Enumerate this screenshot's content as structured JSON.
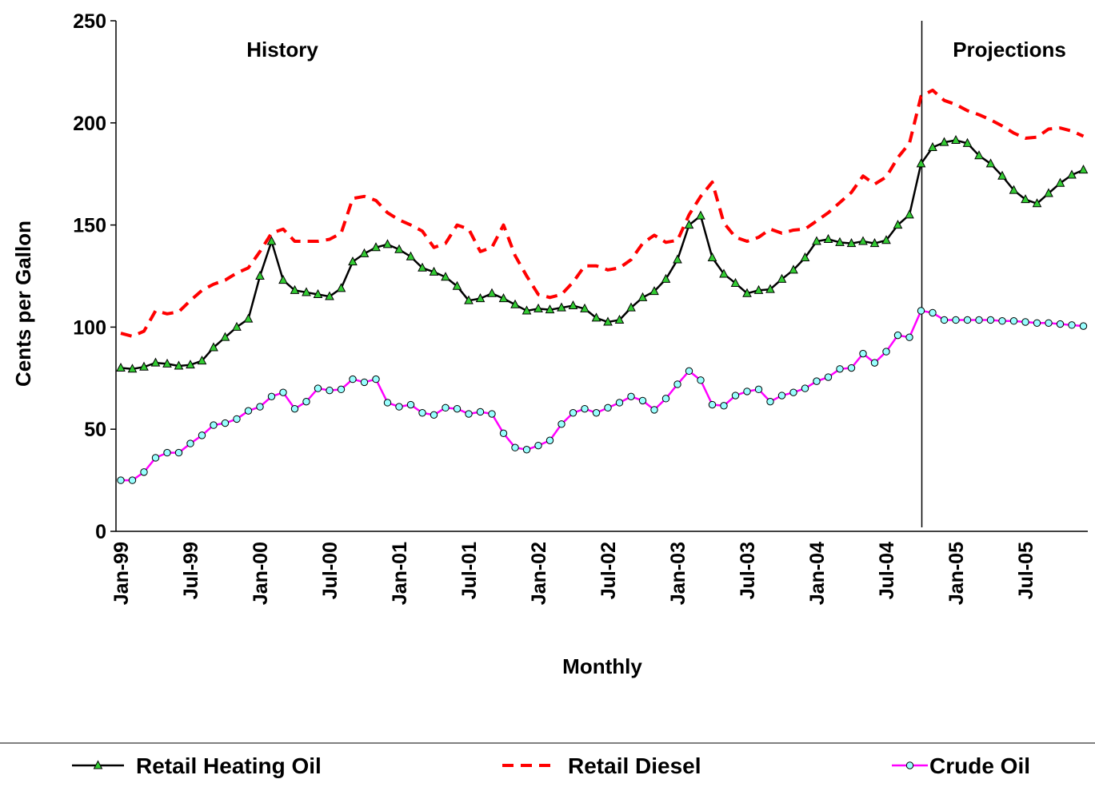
{
  "chart_data": {
    "type": "line",
    "x_label": "Monthly",
    "y_label": "Cents per Gallon",
    "annotations": [
      "History",
      "Projections"
    ],
    "categories": [
      "Jan-99",
      null,
      null,
      null,
      null,
      null,
      "Jul-99",
      null,
      null,
      null,
      null,
      null,
      "Jan-00",
      null,
      null,
      null,
      null,
      null,
      "Jul-00",
      null,
      null,
      null,
      null,
      null,
      "Jan-01",
      null,
      null,
      null,
      null,
      null,
      "Jul-01",
      null,
      null,
      null,
      null,
      null,
      "Jan-02",
      null,
      null,
      null,
      null,
      null,
      "Jul-02",
      null,
      null,
      null,
      null,
      null,
      "Jan-03",
      null,
      null,
      null,
      null,
      null,
      "Jul-03",
      null,
      null,
      null,
      null,
      null,
      "Jan-04",
      null,
      null,
      null,
      null,
      null,
      "Jul-04",
      null,
      null,
      null,
      null,
      null,
      "Jan-05",
      null,
      null,
      null,
      null,
      null,
      "Jul-05",
      null,
      null,
      null,
      null,
      null
    ],
    "ylim": [
      0,
      250
    ],
    "yticks": [
      0,
      50,
      100,
      150,
      200,
      250
    ],
    "grid": false,
    "legend": "bottom",
    "series": [
      {
        "name": "Retail Heating Oil",
        "color": "#000000",
        "line_style": "solid",
        "marker": "triangle",
        "marker_color": "#33cc33",
        "values": [
          80,
          79.5,
          80.5,
          82.5,
          82,
          81,
          81.5,
          83.5,
          90,
          95,
          100,
          104,
          125,
          142,
          123,
          118,
          117,
          116,
          115,
          119,
          132,
          136,
          139,
          140.5,
          138,
          134.5,
          129,
          127,
          124.5,
          120,
          113,
          114,
          116.5,
          114,
          111,
          108,
          109,
          108.5,
          109.5,
          110.5,
          109,
          104.5,
          102.5,
          103.5,
          109.5,
          114.5,
          117.5,
          123.5,
          133,
          150,
          154.5,
          134,
          126,
          121.5,
          116.5,
          118,
          118.5,
          123.5,
          128,
          134,
          142,
          143,
          141.5,
          141,
          142,
          141,
          142.5,
          150,
          155,
          180,
          188,
          190.5,
          191.5,
          190,
          184,
          180,
          174,
          167,
          162.5,
          160.5,
          165.5,
          170.5,
          174.5,
          177
        ]
      },
      {
        "name": "Retail Diesel",
        "color": "#ff0000",
        "line_style": "dashed",
        "marker": null,
        "values": [
          97,
          95.5,
          98,
          108,
          106.5,
          107.5,
          113,
          118,
          121,
          123,
          126.5,
          129,
          137,
          146,
          148,
          142,
          142,
          142,
          143,
          146,
          163,
          164,
          162,
          156,
          152.5,
          150,
          147,
          139,
          141,
          150,
          148,
          137,
          139,
          150,
          135,
          125,
          116,
          114.5,
          116,
          122,
          130,
          130,
          128,
          129,
          133,
          141,
          145,
          141.5,
          142.5,
          155,
          164,
          171,
          151,
          144,
          142,
          144,
          148,
          146,
          147.5,
          148,
          152,
          156,
          161,
          166,
          174,
          170,
          173.5,
          183,
          190,
          213,
          216,
          211,
          209,
          206,
          204,
          201.5,
          198.5,
          195,
          192.5,
          193,
          197,
          197.5,
          196,
          193.5
        ]
      },
      {
        "name": "Crude Oil",
        "color": "#ff00ff",
        "line_style": "solid",
        "marker": "circle",
        "marker_color": "#99ffff",
        "values": [
          25,
          25,
          29,
          36,
          38.5,
          38.5,
          43,
          47,
          52,
          53,
          55,
          59,
          61,
          66,
          68,
          60,
          63.5,
          70,
          69,
          69.5,
          74.5,
          73,
          74.5,
          63,
          61,
          62,
          58,
          57,
          60.5,
          60,
          57.5,
          58.5,
          57.5,
          48,
          41,
          40,
          42,
          44.5,
          52.5,
          58,
          60,
          58,
          60.5,
          63,
          66,
          64,
          59.5,
          65,
          72,
          78.5,
          74,
          62,
          61.5,
          66.5,
          68.5,
          69.5,
          63.5,
          66.5,
          68,
          70,
          73.5,
          75.5,
          79.5,
          80,
          87,
          82.5,
          88,
          96,
          95,
          108,
          107,
          103.5,
          103.5,
          103.5,
          103.5,
          103.5,
          103,
          103,
          102.5,
          102,
          102,
          101.5,
          101,
          100.5
        ]
      }
    ]
  }
}
